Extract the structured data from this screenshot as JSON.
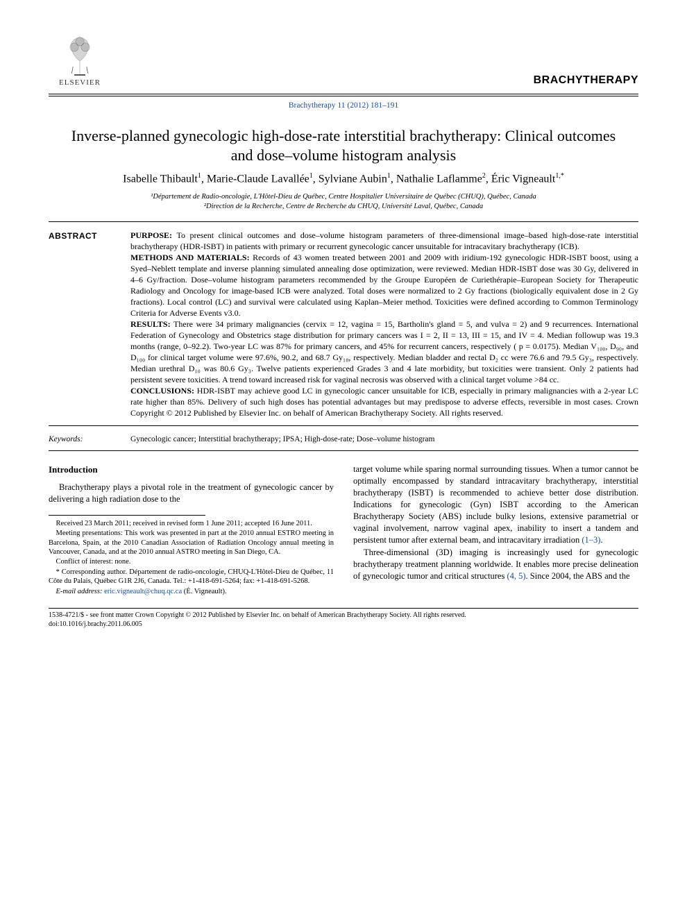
{
  "header": {
    "publisher_label": "ELSEVIER",
    "journal_name": "BRACHYTHERAPY",
    "citation": "Brachytherapy 11 (2012) 181–191"
  },
  "title": "Inverse-planned gynecologic high-dose-rate interstitial brachytherapy: Clinical outcomes and dose–volume histogram analysis",
  "authors_html": "Isabelle Thibault<sup>1</sup>, Marie-Claude Lavallée<sup>1</sup>, Sylviane Aubin<sup>1</sup>, Nathalie Laflamme<sup>2</sup>, Éric Vigneault<sup>1,*</sup>",
  "affiliations": {
    "a1": "¹Département de Radio-oncologie, L'Hôtel-Dieu de Québec, Centre Hospitalier Universitaire de Québec (CHUQ), Québec, Canada",
    "a2": "²Direction de la Recherche, Centre de Recherche du CHUQ, Université Laval, Québec, Canada"
  },
  "abstract": {
    "label": "ABSTRACT",
    "purpose": "To present clinical outcomes and dose–volume histogram parameters of three-dimensional image–based high-dose-rate interstitial brachytherapy (HDR-ISBT) in patients with primary or recurrent gynecologic cancer unsuitable for intracavitary brachytherapy (ICB).",
    "methods": "Records of 43 women treated between 2001 and 2009 with iridium-192 gynecologic HDR-ISBT boost, using a Syed–Neblett template and inverse planning simulated annealing dose optimization, were reviewed. Median HDR-ISBT dose was 30 Gy, delivered in 4–6 Gy/fraction. Dose–volume histogram parameters recommended by the Groupe Européen de Curiethérapie–European Society for Therapeutic Radiology and Oncology for image-based ICB were analyzed. Total doses were normalized to 2 Gy fractions (biologically equivalent dose in 2 Gy fractions). Local control (LC) and survival were calculated using Kaplan–Meier method. Toxicities were defined according to Common Terminology Criteria for Adverse Events v3.0.",
    "results": "There were 34 primary malignancies (cervix = 12, vagina = 15, Bartholin's gland = 5, and vulva = 2) and 9 recurrences. International Federation of Gynecology and Obstetrics stage distribution for primary cancers was I = 2, II = 13, III = 15, and IV = 4. Median followup was 19.3 months (range, 0–92.2). Two-year LC was 87% for primary cancers, and 45% for recurrent cancers, respectively ( p = 0.0175). Median V₁₀₀, D₉₀, and D₁₀₀ for clinical target volume were 97.6%, 90.2, and 68.7 Gy₁₀, respectively. Median bladder and rectal D₂ cc were 76.6 and 79.5 Gy₃, respectively. Median urethral D₁₀ was 80.6 Gy₃. Twelve patients experienced Grades 3 and 4 late morbidity, but toxicities were transient. Only 2 patients had persistent severe toxicities. A trend toward increased risk for vaginal necrosis was observed with a clinical target volume >84 cc.",
    "conclusions": "HDR-ISBT may achieve good LC in gynecologic cancer unsuitable for ICB, especially in primary malignancies with a 2-year LC rate higher than 85%. Delivery of such high doses has potential advantages but may predispose to adverse effects, reversible in most cases. Crown Copyright © 2012 Published by Elsevier Inc. on behalf of American Brachytherapy Society. All rights reserved."
  },
  "keywords": {
    "label": "Keywords:",
    "body": "Gynecologic cancer; Interstitial brachytherapy; IPSA; High-dose-rate; Dose–volume histogram"
  },
  "body": {
    "intro_heading": "Introduction",
    "left_p1": "Brachytherapy plays a pivotal role in the treatment of gynecologic cancer by delivering a high radiation dose to the",
    "right_p1_a": "target volume while sparing normal surrounding tissues. When a tumor cannot be optimally encompassed by standard intracavitary brachytherapy, interstitial brachytherapy (ISBT) is recommended to achieve better dose distribution. Indications for gynecologic (Gyn) ISBT according to the American Brachytherapy Society (ABS) include bulky lesions, extensive parametrial or vaginal involvement, narrow vaginal apex, inability to insert a tandem and persistent tumor after external beam, and intracavitary irradiation ",
    "right_ref1": "(1–3)",
    "right_p1_b": ".",
    "right_p2_a": "Three-dimensional (3D) imaging is increasingly used for gynecologic brachytherapy treatment planning worldwide. It enables more precise delineation of gynecologic tumor and critical structures ",
    "right_ref2": "(4, 5)",
    "right_p2_b": ". Since 2004, the ABS and the"
  },
  "footnotes": {
    "f1": "Received 23 March 2011; received in revised form 1 June 2011; accepted 16 June 2011.",
    "f2": "Meeting presentations: This work was presented in part at the 2010 annual ESTRO meeting in Barcelona, Spain, at the 2010 Canadian Association of Radiation Oncology annual meeting in Vancouver, Canada, and at the 2010 annual ASTRO meeting in San Diego, CA.",
    "f3": "Conflict of interest: none.",
    "f4": "* Corresponding author. Département de radio-oncologie, CHUQ-L'Hôtel-Dieu de Québec, 11 Côte du Palais, Québec G1R 2J6, Canada. Tel.: +1-418-691-5264; fax: +1-418-691-5268.",
    "f5_label": "E-mail address:",
    "f5_email": "eric.vigneault@chuq.qc.ca",
    "f5_name": "(É. Vigneault)."
  },
  "bottom": {
    "copyright": "1538-4721/$ - see front matter Crown Copyright © 2012 Published by Elsevier Inc. on behalf of American Brachytherapy Society. All rights reserved.",
    "doi": "doi:10.1016/j.brachy.2011.06.005"
  },
  "colors": {
    "link": "#1a4b8c",
    "text": "#000000",
    "bg": "#ffffff"
  }
}
